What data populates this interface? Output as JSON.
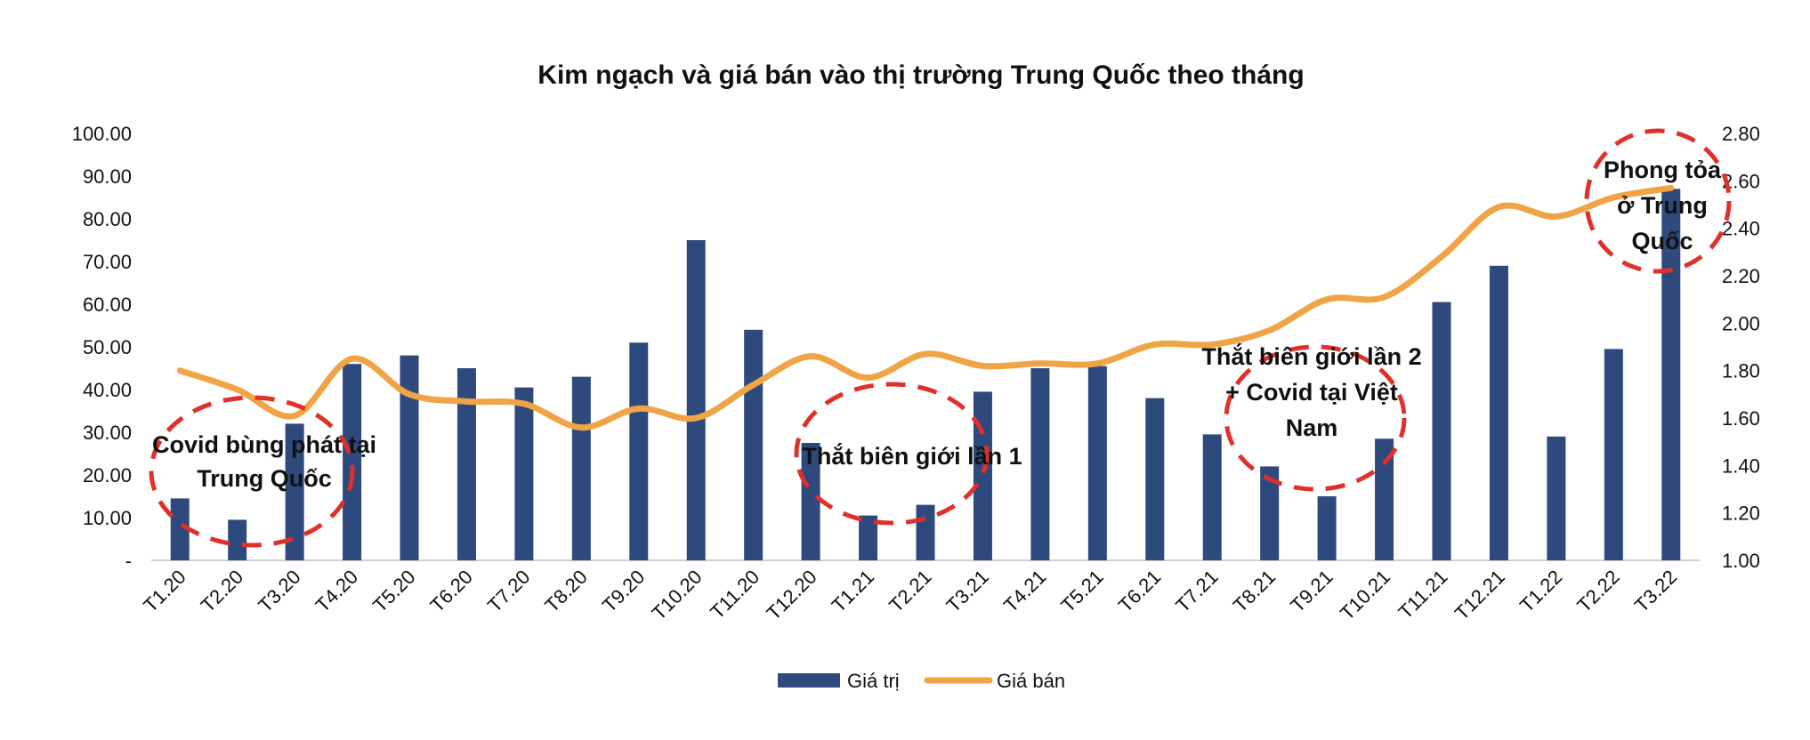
{
  "chart_data": {
    "type": "bar+line",
    "title": "Kim ngạch và giá bán vào thị trường Trung Quốc theo tháng",
    "categories": [
      "T1.20",
      "T2.20",
      "T3.20",
      "T4.20",
      "T5.20",
      "T6.20",
      "T7.20",
      "T8.20",
      "T9.20",
      "T10.20",
      "T11.20",
      "T12.20",
      "T1.21",
      "T2.21",
      "T3.21",
      "T4.21",
      "T5.21",
      "T6.21",
      "T7.21",
      "T8.21",
      "T9.21",
      "T10.21",
      "T11.21",
      "T12.21",
      "T1.22",
      "T2.22",
      "T3.22"
    ],
    "series": [
      {
        "name": "Giá trị",
        "type": "bar",
        "axis": "left",
        "color": "#2E4A7D",
        "values": [
          14.5,
          9.5,
          32.0,
          46.0,
          48.0,
          45.0,
          40.5,
          43.0,
          51.0,
          75.0,
          54.0,
          27.5,
          10.5,
          13.0,
          39.5,
          45.0,
          45.5,
          38.0,
          29.5,
          22.0,
          15.0,
          28.5,
          60.5,
          69.0,
          29.0,
          49.5,
          87.0
        ]
      },
      {
        "name": "Giá bán",
        "type": "line",
        "axis": "right",
        "color": "#F0A445",
        "values": [
          1.8,
          1.72,
          1.61,
          1.85,
          1.7,
          1.67,
          1.66,
          1.56,
          1.64,
          1.6,
          1.74,
          1.86,
          1.77,
          1.87,
          1.82,
          1.83,
          1.83,
          1.91,
          1.91,
          1.97,
          2.1,
          2.11,
          2.28,
          2.49,
          2.45,
          2.53,
          2.57
        ]
      }
    ],
    "y_left": {
      "min": 0,
      "max": 100,
      "step": 10,
      "tick_labels": [
        "-",
        "10.00",
        "20.00",
        "30.00",
        "40.00",
        "50.00",
        "60.00",
        "70.00",
        "80.00",
        "90.00",
        "100.00"
      ]
    },
    "y_right": {
      "min": 1.0,
      "max": 2.8,
      "step": 0.2,
      "tick_labels": [
        "1.00",
        "1.20",
        "1.40",
        "1.60",
        "1.80",
        "2.00",
        "2.20",
        "2.40",
        "2.60",
        "2.80"
      ]
    },
    "grid": false,
    "legend_position": "bottom",
    "annotations": [
      {
        "lines": [
          "Covid bùng phát tại",
          "Trung Quốc"
        ]
      },
      {
        "lines": [
          "Thắt biên giới lần 1"
        ]
      },
      {
        "lines": [
          "Thắt biên giới lần 2",
          "+ Covid tại Việt",
          "Nam"
        ]
      },
      {
        "lines": [
          "Phong tỏa",
          "ở Trung",
          "Quốc"
        ]
      }
    ],
    "annotation_ellipse_color": "#E0302A"
  }
}
